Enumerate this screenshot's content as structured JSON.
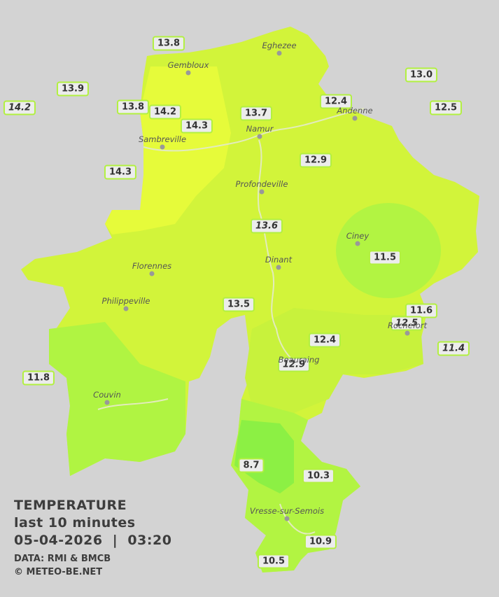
{
  "legend": {
    "title": "TEMPERATURE",
    "subtitle": "last 10 minutes",
    "datetime": "05-04-2026  |  03:20",
    "source": "DATA: RMI & BMCB",
    "copyright": "© METEO-BE.NET"
  },
  "cities": [
    "Eghezee",
    "Gembloux",
    "Andenne",
    "Namur",
    "Sambreville",
    "Profondeville",
    "Ciney",
    "Dinant",
    "Florennes",
    "Philippeville",
    "Rochefort",
    "Beauraing",
    "Couvin",
    "Vresse-sur-Semois"
  ],
  "stations": [
    {
      "label": "13.8"
    },
    {
      "label": "13.9"
    },
    {
      "label": "14.2",
      "italic": true
    },
    {
      "label": "13.8"
    },
    {
      "label": "14.2"
    },
    {
      "label": "14.3"
    },
    {
      "label": "13.7"
    },
    {
      "label": "12.4"
    },
    {
      "label": "13.0"
    },
    {
      "label": "12.5"
    },
    {
      "label": "14.3"
    },
    {
      "label": "12.9"
    },
    {
      "label": "13.6",
      "italic": true
    },
    {
      "label": "11.5"
    },
    {
      "label": "13.5"
    },
    {
      "label": "11.6"
    },
    {
      "label": "12.5",
      "italic": true
    },
    {
      "label": "12.4"
    },
    {
      "label": "11.4",
      "italic": true
    },
    {
      "label": "12.9",
      "italic": true
    },
    {
      "label": "11.8"
    },
    {
      "label": "8.7"
    },
    {
      "label": "10.3"
    },
    {
      "label": "10.9"
    },
    {
      "label": "10.5"
    }
  ]
}
